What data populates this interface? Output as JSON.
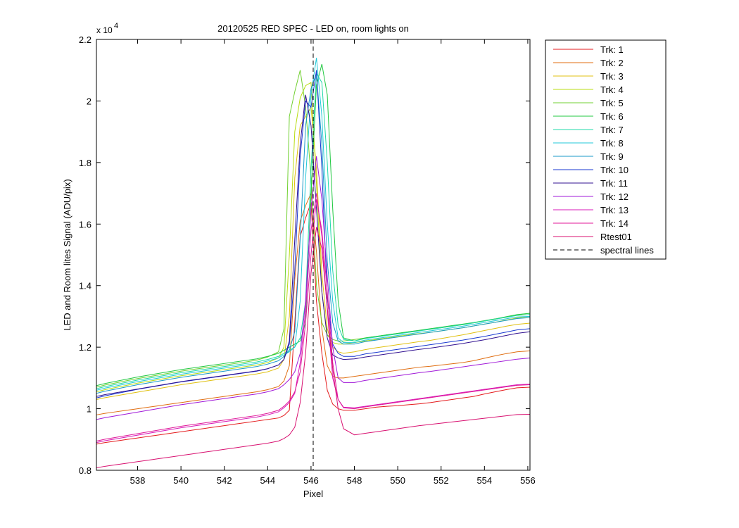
{
  "chart_data": {
    "type": "line",
    "title": "20120525 RED SPEC - LED on, room lights on",
    "xlabel": "Pixel",
    "ylabel": "LED and Room lites Signal (ADU/pix)",
    "y_exponent_label": "x 10",
    "y_exponent_power": "4",
    "xlim": [
      536.1,
      556.1
    ],
    "ylim": [
      8000,
      22000
    ],
    "xticks": [
      538,
      540,
      542,
      544,
      546,
      548,
      550,
      552,
      554,
      556
    ],
    "yticks": [
      8000,
      10000,
      12000,
      14000,
      16000,
      18000,
      20000,
      22000
    ],
    "ytick_labels": [
      "0.8",
      "1",
      "1.2",
      "1.4",
      "1.6",
      "1.8",
      "2",
      "2.2"
    ],
    "grid": false,
    "legend_position": "outside-right",
    "spectral_line_x": 546.1,
    "x": [
      536.1,
      536.5,
      537.0,
      537.5,
      538.0,
      538.5,
      539.0,
      539.5,
      540.0,
      540.5,
      541.0,
      541.5,
      542.0,
      542.5,
      543.0,
      543.5,
      544.0,
      544.5,
      544.75,
      545.0,
      545.25,
      545.5,
      545.75,
      546.0,
      546.25,
      546.5,
      546.75,
      547.0,
      547.25,
      547.5,
      548.0,
      548.5,
      549.0,
      549.5,
      550.0,
      550.5,
      551.0,
      551.5,
      552.0,
      552.5,
      553.0,
      553.5,
      554.0,
      554.5,
      555.0,
      555.5,
      556.1
    ],
    "series": [
      {
        "name": "Trk: 1",
        "color": "#e41a1c",
        "values": [
          8850,
          8900,
          8950,
          9000,
          9050,
          9100,
          9150,
          9200,
          9250,
          9300,
          9350,
          9400,
          9450,
          9500,
          9550,
          9600,
          9650,
          9700,
          9780,
          9950,
          12800,
          15600,
          16200,
          16700,
          13500,
          11800,
          10600,
          10150,
          10000,
          9950,
          9950,
          10000,
          10050,
          10080,
          10100,
          10130,
          10160,
          10200,
          10250,
          10300,
          10350,
          10400,
          10480,
          10550,
          10620,
          10680,
          10700
        ]
      },
      {
        "name": "Trk: 2",
        "color": "#e06d10",
        "values": [
          9800,
          9850,
          9900,
          9950,
          10000,
          10050,
          10100,
          10150,
          10200,
          10250,
          10300,
          10350,
          10400,
          10450,
          10500,
          10550,
          10620,
          10720,
          10900,
          11400,
          14200,
          16100,
          16600,
          17000,
          15100,
          12600,
          11400,
          11050,
          11000,
          11000,
          11050,
          11100,
          11150,
          11200,
          11250,
          11300,
          11350,
          11380,
          11420,
          11460,
          11500,
          11560,
          11640,
          11720,
          11790,
          11850,
          11880
        ]
      },
      {
        "name": "Trk: 3",
        "color": "#e0c010",
        "values": [
          10300,
          10360,
          10420,
          10480,
          10540,
          10600,
          10660,
          10720,
          10780,
          10830,
          10880,
          10930,
          10980,
          11030,
          11080,
          11130,
          11200,
          11320,
          11600,
          13000,
          17500,
          19200,
          19500,
          19800,
          17800,
          14400,
          12600,
          12000,
          11850,
          11800,
          11850,
          11920,
          11980,
          12030,
          12080,
          12130,
          12180,
          12220,
          12280,
          12340,
          12400,
          12470,
          12540,
          12610,
          12680,
          12740,
          12780
        ]
      },
      {
        "name": "Trk: 4",
        "color": "#b8dc10",
        "values": [
          10550,
          10620,
          10690,
          10760,
          10830,
          10890,
          10950,
          11010,
          11070,
          11120,
          11170,
          11220,
          11270,
          11320,
          11370,
          11420,
          11500,
          11650,
          12000,
          15000,
          19000,
          20100,
          20500,
          20600,
          17300,
          13800,
          12400,
          12150,
          12100,
          12100,
          12150,
          12200,
          12250,
          12300,
          12350,
          12400,
          12440,
          12480,
          12530,
          12580,
          12630,
          12690,
          12750,
          12810,
          12880,
          12950,
          13000
        ]
      },
      {
        "name": "Trk: 5",
        "color": "#70d030",
        "values": [
          10700,
          10770,
          10840,
          10910,
          10980,
          11040,
          11100,
          11160,
          11220,
          11270,
          11320,
          11370,
          11420,
          11470,
          11520,
          11580,
          11680,
          11850,
          12600,
          19500,
          20300,
          21000,
          19800,
          17500,
          14000,
          12800,
          12400,
          12250,
          12200,
          12200,
          12250,
          12300,
          12350,
          12400,
          12450,
          12500,
          12540,
          12580,
          12630,
          12680,
          12730,
          12790,
          12850,
          12910,
          12980,
          13050,
          13100
        ]
      },
      {
        "name": "Trk: 6",
        "color": "#20c840",
        "values": [
          10750,
          10820,
          10890,
          10960,
          11030,
          11090,
          11150,
          11210,
          11270,
          11320,
          11370,
          11420,
          11470,
          11520,
          11570,
          11620,
          11700,
          11800,
          11900,
          12000,
          12100,
          12200,
          12800,
          17000,
          20500,
          21200,
          20200,
          16500,
          13500,
          12300,
          12200,
          12300,
          12350,
          12400,
          12450,
          12500,
          12550,
          12600,
          12650,
          12700,
          12750,
          12800,
          12860,
          12920,
          12990,
          13060,
          13100
        ]
      },
      {
        "name": "Trk: 7",
        "color": "#20d8a8",
        "values": [
          10650,
          10720,
          10790,
          10860,
          10930,
          10990,
          11050,
          11110,
          11170,
          11220,
          11270,
          11320,
          11370,
          11420,
          11470,
          11520,
          11600,
          11700,
          11800,
          11900,
          12000,
          12300,
          13500,
          17800,
          20900,
          20600,
          18000,
          14500,
          12700,
          12250,
          12200,
          12280,
          12330,
          12380,
          12430,
          12480,
          12530,
          12580,
          12630,
          12680,
          12730,
          12790,
          12850,
          12910,
          12970,
          13030,
          13060
        ]
      },
      {
        "name": "Trk: 8",
        "color": "#20c8d8",
        "values": [
          10600,
          10670,
          10740,
          10810,
          10880,
          10940,
          11000,
          11060,
          11120,
          11170,
          11220,
          11270,
          11320,
          11370,
          11420,
          11470,
          11550,
          11650,
          11750,
          11850,
          12000,
          13500,
          17500,
          20200,
          21400,
          19500,
          16000,
          13500,
          12300,
          12150,
          12150,
          12230,
          12280,
          12330,
          12380,
          12430,
          12480,
          12530,
          12580,
          12630,
          12680,
          12740,
          12800,
          12860,
          12920,
          12980,
          13000
        ]
      },
      {
        "name": "Trk: 9",
        "color": "#1898c8",
        "values": [
          10500,
          10570,
          10640,
          10710,
          10780,
          10840,
          10900,
          10960,
          11020,
          11070,
          11120,
          11170,
          11220,
          11270,
          11320,
          11370,
          11450,
          11560,
          11700,
          11900,
          12500,
          15500,
          19200,
          20400,
          20900,
          18600,
          14800,
          12800,
          12200,
          12100,
          12100,
          12180,
          12230,
          12280,
          12330,
          12380,
          12430,
          12480,
          12530,
          12580,
          12630,
          12690,
          12750,
          12810,
          12870,
          12930,
          12960
        ]
      },
      {
        "name": "Trk: 10",
        "color": "#1838d0",
        "values": [
          10350,
          10420,
          10490,
          10560,
          10630,
          10690,
          10750,
          10810,
          10870,
          10920,
          10970,
          11020,
          11070,
          11120,
          11170,
          11220,
          11300,
          11420,
          11600,
          12100,
          14500,
          18200,
          20000,
          19800,
          21000,
          17800,
          13600,
          12100,
          11800,
          11700,
          11700,
          11780,
          11830,
          11880,
          11930,
          11980,
          12030,
          12080,
          12130,
          12180,
          12230,
          12290,
          12350,
          12420,
          12490,
          12560,
          12600
        ]
      },
      {
        "name": "Trk: 11",
        "color": "#301090",
        "values": [
          10400,
          10460,
          10520,
          10580,
          10640,
          10700,
          10760,
          10820,
          10880,
          10930,
          10980,
          11030,
          11080,
          11130,
          11180,
          11230,
          11300,
          11420,
          11600,
          12200,
          15500,
          18600,
          20200,
          19200,
          16500,
          13800,
          12300,
          11750,
          11650,
          11600,
          11620,
          11680,
          11730,
          11780,
          11830,
          11880,
          11930,
          11970,
          12020,
          12070,
          12120,
          12180,
          12240,
          12310,
          12380,
          12450,
          12500
        ]
      },
      {
        "name": "Trk: 12",
        "color": "#a018d8",
        "values": [
          9650,
          9710,
          9770,
          9830,
          9890,
          9950,
          10010,
          10070,
          10130,
          10180,
          10230,
          10280,
          10330,
          10380,
          10430,
          10480,
          10550,
          10650,
          10780,
          10950,
          11200,
          11800,
          13500,
          16500,
          18200,
          16800,
          14300,
          12000,
          11000,
          10850,
          10850,
          10920,
          10970,
          11020,
          11070,
          11120,
          11170,
          11210,
          11260,
          11310,
          11360,
          11410,
          11460,
          11510,
          11560,
          11610,
          11650
        ]
      },
      {
        "name": "Trk: 13",
        "color": "#d818b8",
        "values": [
          8900,
          8960,
          9020,
          9080,
          9140,
          9200,
          9260,
          9320,
          9380,
          9430,
          9480,
          9530,
          9580,
          9630,
          9680,
          9730,
          9800,
          9900,
          10030,
          10200,
          10500,
          11500,
          13200,
          15800,
          17000,
          15600,
          13200,
          11000,
          10300,
          10050,
          10030,
          10080,
          10130,
          10180,
          10230,
          10280,
          10330,
          10380,
          10430,
          10480,
          10530,
          10580,
          10630,
          10680,
          10730,
          10780,
          10800
        ]
      },
      {
        "name": "Trk: 14",
        "color": "#e01898",
        "values": [
          8950,
          9010,
          9070,
          9130,
          9190,
          9250,
          9310,
          9370,
          9430,
          9480,
          9530,
          9580,
          9630,
          9680,
          9730,
          9780,
          9850,
          9950,
          10080,
          10250,
          10550,
          11200,
          12800,
          15000,
          16800,
          15800,
          13800,
          11500,
          10300,
          10030,
          10000,
          10060,
          10110,
          10160,
          10210,
          10260,
          10310,
          10360,
          10410,
          10460,
          10510,
          10560,
          10610,
          10660,
          10710,
          10760,
          10780
        ]
      },
      {
        "name": "Rtest01",
        "color": "#d81070",
        "values": [
          8080,
          8130,
          8180,
          8230,
          8280,
          8330,
          8380,
          8430,
          8480,
          8530,
          8580,
          8630,
          8680,
          8730,
          8780,
          8830,
          8880,
          8950,
          9030,
          9150,
          9400,
          10200,
          11800,
          14400,
          15900,
          15200,
          13300,
          11300,
          10000,
          9350,
          9150,
          9200,
          9250,
          9300,
          9350,
          9400,
          9450,
          9490,
          9530,
          9570,
          9610,
          9650,
          9690,
          9730,
          9770,
          9810,
          9820
        ]
      }
    ],
    "legend_extra": {
      "name": "spectral lines",
      "color": "#000000",
      "style": "dashed"
    }
  }
}
